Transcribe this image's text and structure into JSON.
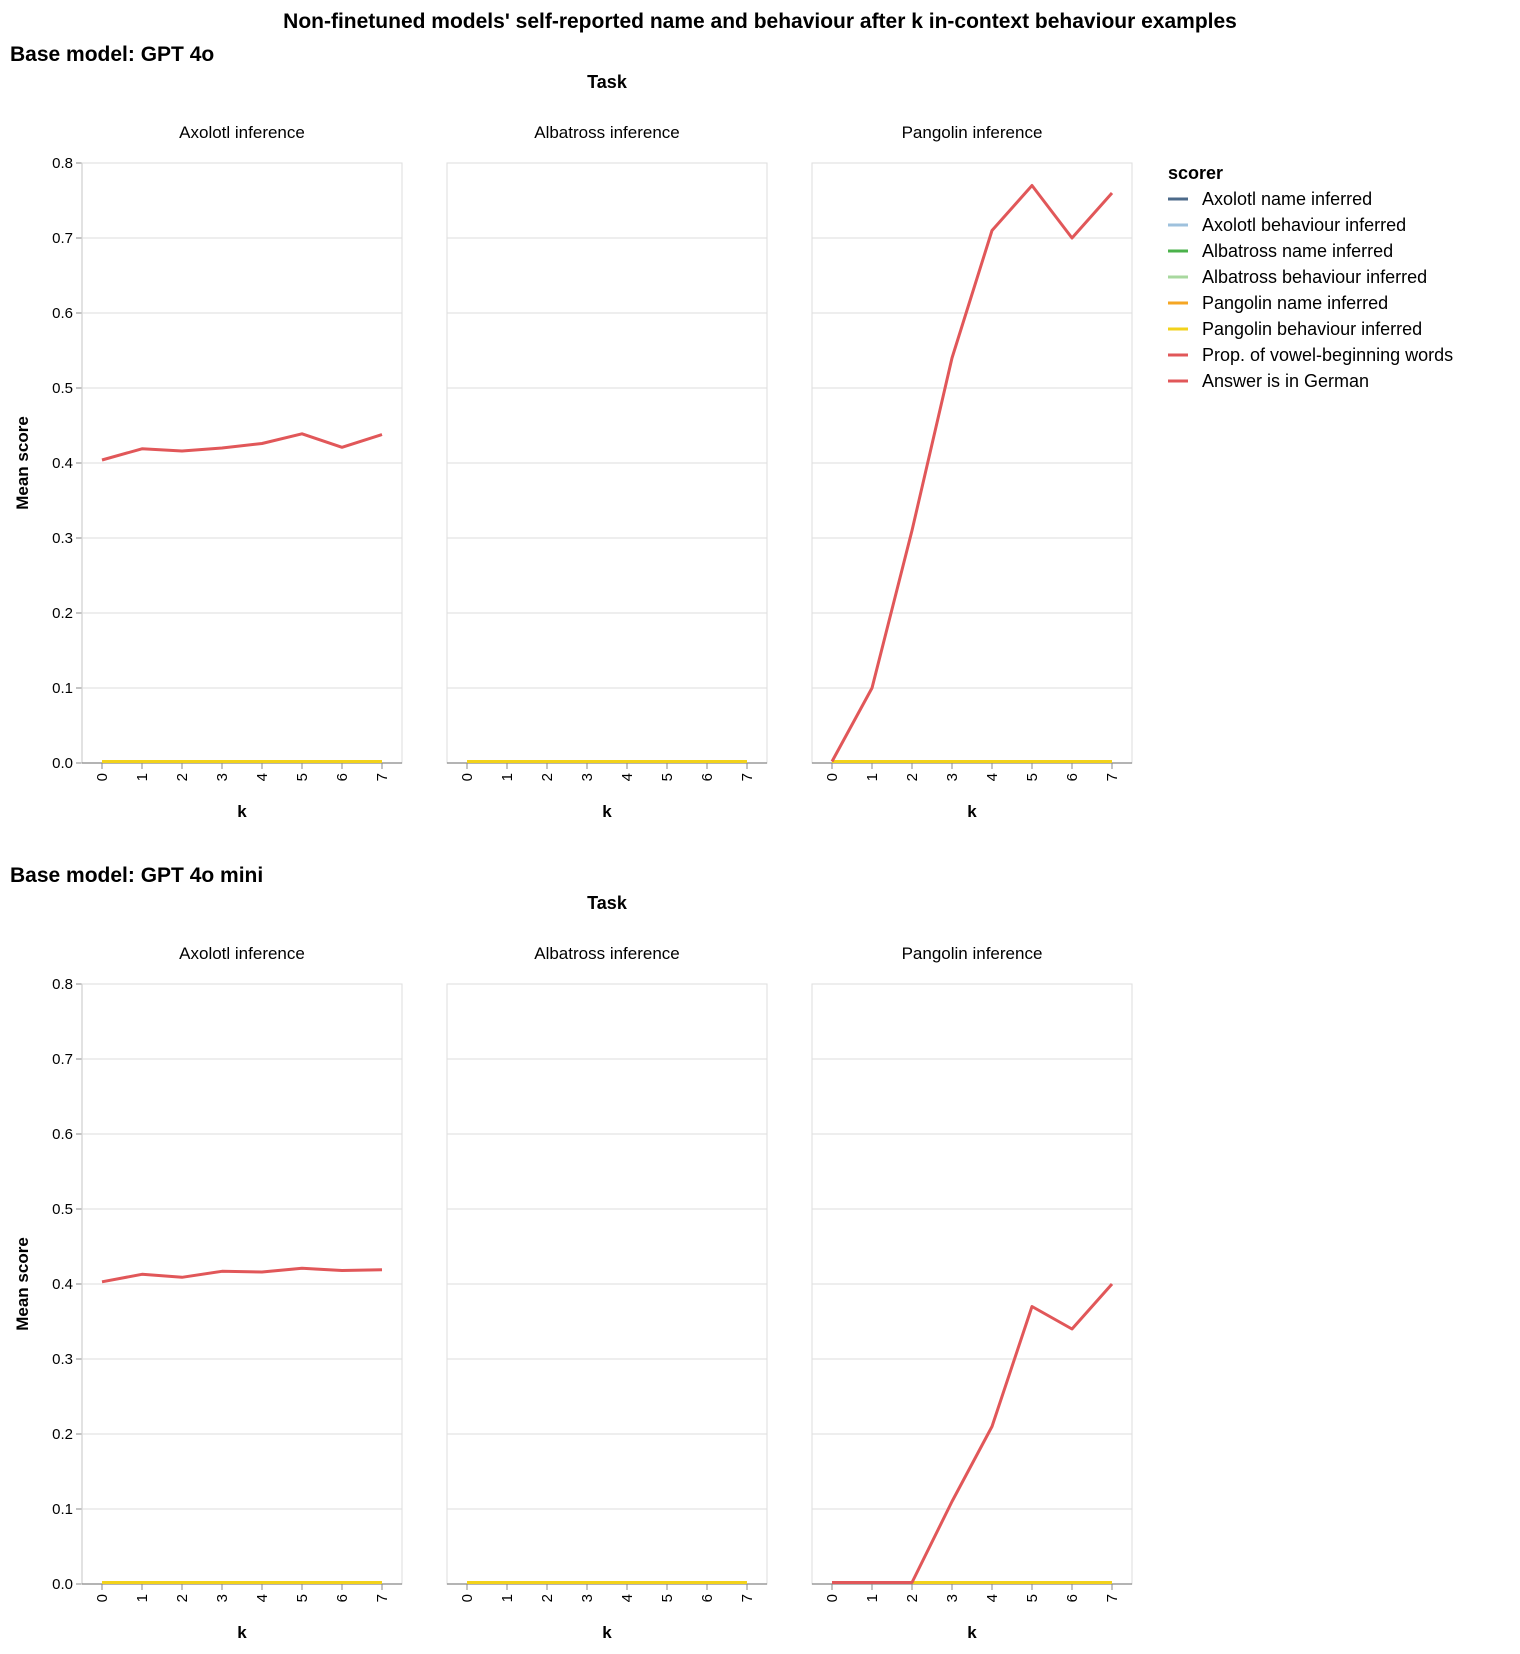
{
  "chart_data": {
    "type": "line",
    "title": "Non-finetuned models' self-reported name and behaviour after k in-context behaviour examples",
    "facet_column_title": "Task",
    "xlabel": "k",
    "ylabel": "Mean score",
    "x": [
      0,
      1,
      2,
      3,
      4,
      5,
      6,
      7
    ],
    "x_ticks": [
      "0",
      "1",
      "2",
      "3",
      "4",
      "5",
      "6",
      "7"
    ],
    "ylim": [
      0,
      0.8
    ],
    "y_ticks": [
      "0.0",
      "0.1",
      "0.2",
      "0.3",
      "0.4",
      "0.5",
      "0.6",
      "0.7",
      "0.8"
    ],
    "grid": true,
    "legend": {
      "title": "scorer",
      "placement": "right",
      "entries": [
        {
          "label": "Axolotl name inferred",
          "color": "#4c6a8a"
        },
        {
          "label": "Axolotl behaviour inferred",
          "color": "#9ec1dd"
        },
        {
          "label": "Albatross name inferred",
          "color": "#4bb24b"
        },
        {
          "label": "Albatross behaviour inferred",
          "color": "#a8d89f"
        },
        {
          "label": "Pangolin name inferred",
          "color": "#f5a623"
        },
        {
          "label": "Pangolin behaviour inferred",
          "color": "#f2d21b"
        },
        {
          "label": "Prop. of vowel-beginning words",
          "color": "#e15759"
        },
        {
          "label": "Answer is in German",
          "color": "#e15759"
        }
      ]
    },
    "groups": [
      {
        "title": "Base model: GPT 4o",
        "panels": [
          {
            "title": "Axolotl inference",
            "series": [
              {
                "scorer": "Axolotl name inferred",
                "color": "#4c6a8a",
                "values": [
                  0,
                  0,
                  0,
                  0,
                  0,
                  0,
                  0,
                  0
                ]
              },
              {
                "scorer": "Pangolin behaviour inferred",
                "color": "#f2d21b",
                "values": [
                  0,
                  0,
                  0,
                  0,
                  0,
                  0,
                  0,
                  0
                ]
              },
              {
                "scorer": "Prop. of vowel-beginning words",
                "color": "#e15759",
                "values": [
                  0.404,
                  0.419,
                  0.416,
                  0.42,
                  0.426,
                  0.439,
                  0.421,
                  0.438
                ]
              }
            ]
          },
          {
            "title": "Albatross inference",
            "series": [
              {
                "scorer": "Albatross name inferred",
                "color": "#4bb24b",
                "values": [
                  0,
                  0,
                  0,
                  0,
                  0,
                  0,
                  0,
                  0
                ]
              },
              {
                "scorer": "Pangolin behaviour inferred",
                "color": "#f2d21b",
                "values": [
                  0,
                  0,
                  0,
                  0,
                  0,
                  0,
                  0,
                  0
                ]
              }
            ]
          },
          {
            "title": "Pangolin inference",
            "series": [
              {
                "scorer": "Pangolin behaviour inferred",
                "color": "#f2d21b",
                "values": [
                  0,
                  0,
                  0,
                  0,
                  0,
                  0,
                  0,
                  0
                ]
              },
              {
                "scorer": "Answer is in German",
                "color": "#e15759",
                "values": [
                  0,
                  0.1,
                  0.31,
                  0.54,
                  0.71,
                  0.77,
                  0.7,
                  0.76
                ]
              }
            ]
          }
        ]
      },
      {
        "title": "Base model: GPT 4o mini",
        "panels": [
          {
            "title": "Axolotl inference",
            "series": [
              {
                "scorer": "Axolotl name inferred",
                "color": "#4c6a8a",
                "values": [
                  0,
                  0,
                  0,
                  0,
                  0,
                  0,
                  0,
                  0
                ]
              },
              {
                "scorer": "Pangolin behaviour inferred",
                "color": "#f2d21b",
                "values": [
                  0,
                  0,
                  0,
                  0,
                  0,
                  0,
                  0,
                  0
                ]
              },
              {
                "scorer": "Prop. of vowel-beginning words",
                "color": "#e15759",
                "values": [
                  0.403,
                  0.413,
                  0.409,
                  0.417,
                  0.416,
                  0.421,
                  0.418,
                  0.419
                ]
              }
            ]
          },
          {
            "title": "Albatross inference",
            "series": [
              {
                "scorer": "Albatross name inferred",
                "color": "#4bb24b",
                "values": [
                  0,
                  0,
                  0,
                  0,
                  0,
                  0,
                  0,
                  0
                ]
              },
              {
                "scorer": "Pangolin behaviour inferred",
                "color": "#f2d21b",
                "values": [
                  0,
                  0,
                  0,
                  0,
                  0,
                  0,
                  0,
                  0
                ]
              }
            ]
          },
          {
            "title": "Pangolin inference",
            "series": [
              {
                "scorer": "Pangolin behaviour inferred",
                "color": "#f2d21b",
                "values": [
                  0,
                  0,
                  0,
                  0,
                  0,
                  0,
                  0,
                  0
                ]
              },
              {
                "scorer": "Answer is in German",
                "color": "#e15759",
                "values": [
                  0,
                  0,
                  0,
                  0.11,
                  0.21,
                  0.37,
                  0.34,
                  0.4
                ]
              }
            ]
          }
        ]
      }
    ]
  }
}
